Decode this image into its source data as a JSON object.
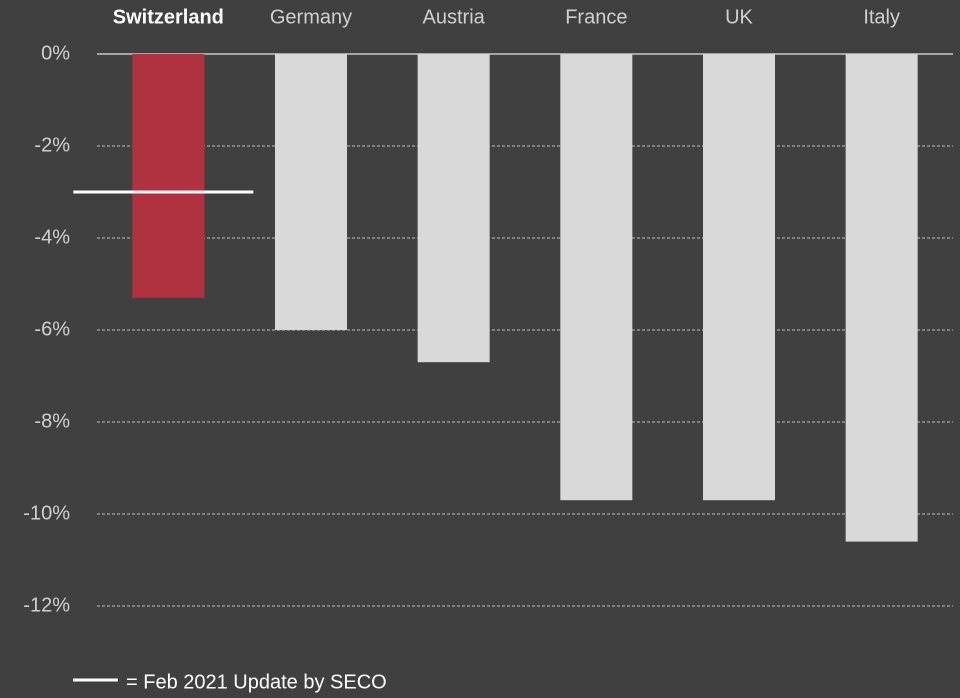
{
  "chart_data": {
    "type": "bar",
    "categories": [
      "Switzerland",
      "Germany",
      "Austria",
      "France",
      "UK",
      "Italy"
    ],
    "values": [
      -5.3,
      -6.0,
      -6.7,
      -9.7,
      -9.7,
      -10.6
    ],
    "colors": [
      "#b0313f",
      "#d9d9d9",
      "#d9d9d9",
      "#d9d9d9",
      "#d9d9d9",
      "#d9d9d9"
    ],
    "highlight": 0,
    "ylim": [
      -12,
      0
    ],
    "yticks": [
      {
        "value": 0,
        "label": "0%"
      },
      {
        "value": -2,
        "label": "-2%"
      },
      {
        "value": -4,
        "label": "-4%"
      },
      {
        "value": -6,
        "label": "-6%"
      },
      {
        "value": -8,
        "label": "-8%"
      },
      {
        "value": -10,
        "label": "-10%"
      },
      {
        "value": -12,
        "label": "-12%"
      }
    ],
    "grid": true,
    "reference": {
      "label": "= Feb 2021 Update by SECO",
      "value": -3.0,
      "category": 0,
      "color": "#ffffff"
    }
  }
}
